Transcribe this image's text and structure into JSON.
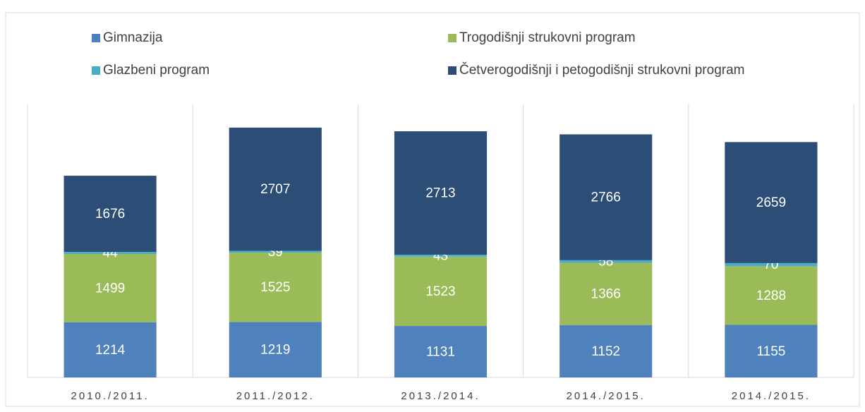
{
  "chart_data": {
    "type": "stacked_bar",
    "categories": [
      "2010./2011.",
      "2011./2012.",
      "2013./2014.",
      "2014./2015.",
      "2014./2015."
    ],
    "series": [
      {
        "name": "Gimnazija",
        "color": "#4f81bd",
        "values": [
          1214,
          1219,
          1131,
          1152,
          1155
        ]
      },
      {
        "name": "Trogodišnji strukovni program",
        "color": "#9bbb59",
        "values": [
          1499,
          1525,
          1523,
          1366,
          1288
        ]
      },
      {
        "name": "Glazbeni program",
        "color": "#4bacc6",
        "values": [
          44,
          39,
          43,
          58,
          70
        ]
      },
      {
        "name": "Četverogodišnji i petogodišnji strukovni program",
        "color": "#2c4d75",
        "values": [
          1676,
          2707,
          2713,
          2766,
          2659
        ]
      }
    ],
    "ylim": [
      0,
      6000
    ],
    "grid": true,
    "legend": "top"
  }
}
